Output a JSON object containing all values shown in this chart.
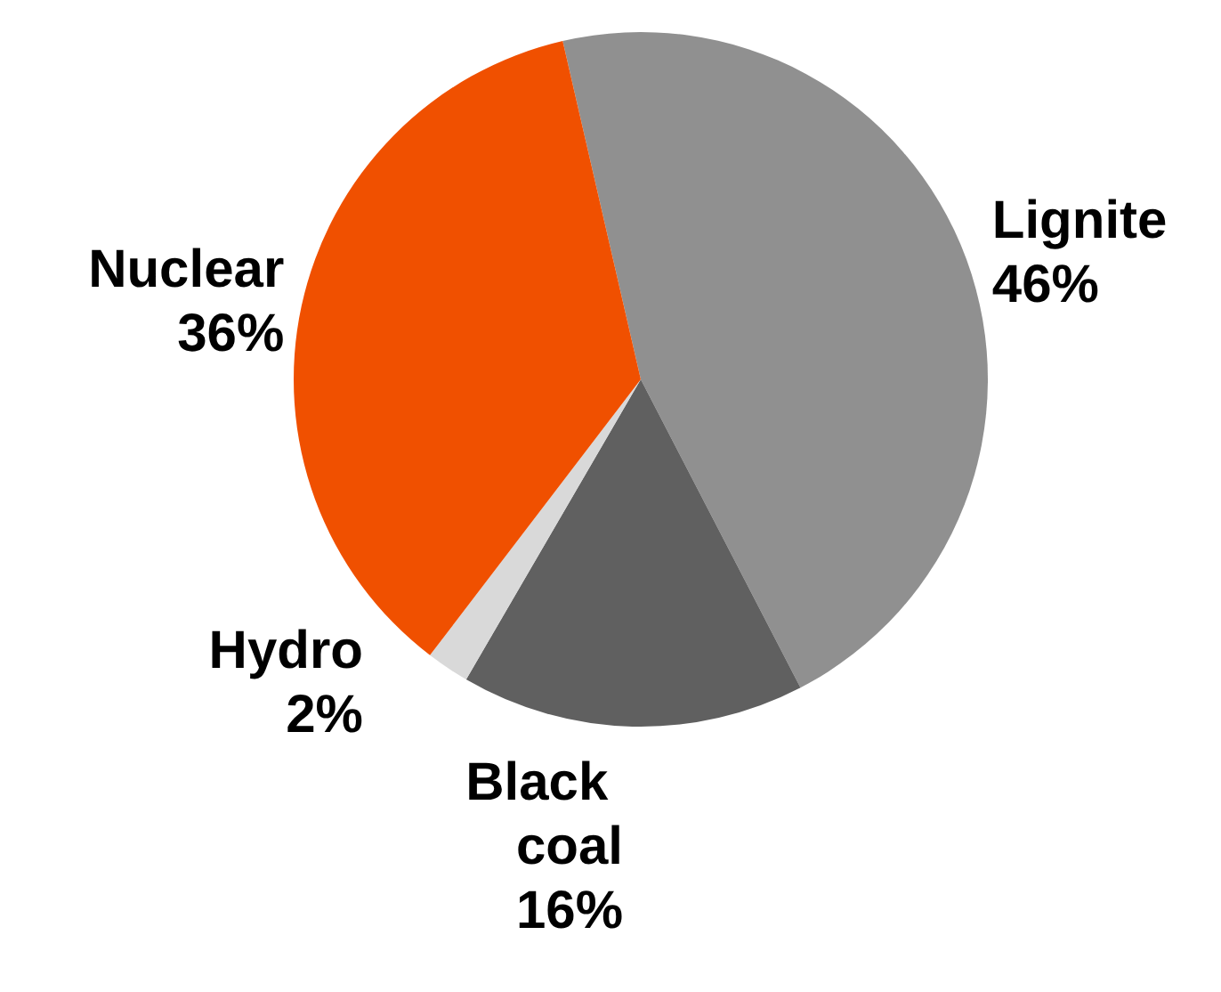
{
  "chart_data": {
    "type": "pie",
    "categories": [
      "Lignite",
      "Black coal",
      "Hydro",
      "Nuclear"
    ],
    "values": [
      46,
      16,
      2,
      36
    ],
    "value_labels": [
      "46%",
      "16%",
      "2%",
      "36%"
    ],
    "colors": [
      "#909090",
      "#606060",
      "#d9d9d9",
      "#f05000"
    ],
    "legend": false
  }
}
